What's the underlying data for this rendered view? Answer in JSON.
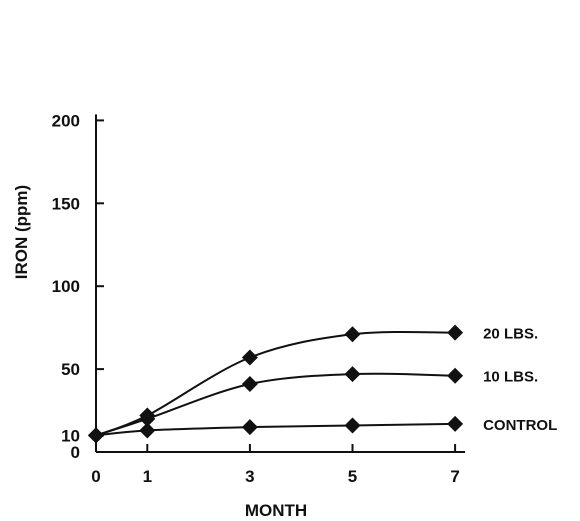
{
  "chart_data": {
    "type": "line",
    "title": "",
    "xlabel": "MONTH",
    "ylabel": "IRON (ppm)",
    "xlim": [
      0,
      7
    ],
    "ylim": [
      0,
      200
    ],
    "x_ticks": [
      0,
      1,
      3,
      5,
      7
    ],
    "y_ticks": [
      0,
      10,
      50,
      100,
      150,
      200
    ],
    "grid": false,
    "legend": "inline-right",
    "marker": "diamond",
    "series": [
      {
        "name": "20 LBS.",
        "x": [
          0,
          1,
          3,
          5,
          7
        ],
        "y": [
          10,
          22,
          57,
          71,
          72
        ]
      },
      {
        "name": "10 LBS.",
        "x": [
          0,
          1,
          3,
          5,
          7
        ],
        "y": [
          10,
          20,
          41,
          47,
          46
        ]
      },
      {
        "name": "CONTROL",
        "x": [
          0,
          1,
          3,
          5,
          7
        ],
        "y": [
          10,
          13,
          15,
          16,
          17
        ]
      }
    ],
    "colors": {
      "line": "#111111",
      "marker": "#111111"
    }
  }
}
